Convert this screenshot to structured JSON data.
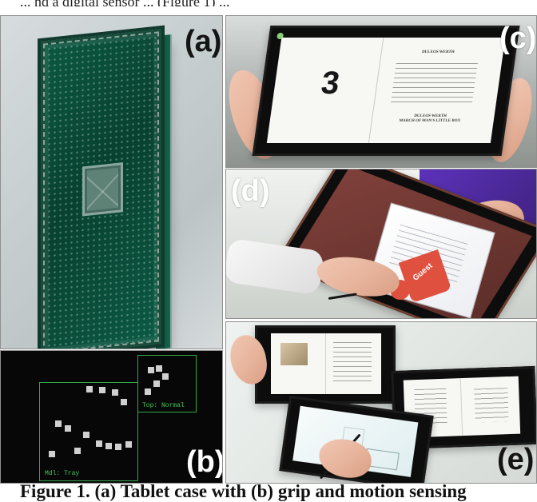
{
  "page": {
    "top_text": "... nd a digital sensor ... (Figure 1) ...",
    "caption": "Figure 1. (a) Tablet case with (b) grip and motion sensing"
  },
  "figure": {
    "panels": [
      {
        "id": "a",
        "label": "(a)"
      },
      {
        "id": "b",
        "label": "(b)"
      },
      {
        "id": "c",
        "label": "(c)"
      },
      {
        "id": "d",
        "label": "(d)"
      },
      {
        "id": "e",
        "label": "(e)"
      }
    ],
    "panel_b": {
      "top_label": "Top: Normal",
      "bottom_label": "Mdl: Tray"
    },
    "panel_c": {
      "number": "3",
      "book_title_top": "DULEOS WERTH",
      "book_title_bottom": "DULEOS WERTH\nMARCH OF MAN'S LITTLE BOX"
    },
    "panel_d": {
      "tag_text": "Guest"
    }
  }
}
